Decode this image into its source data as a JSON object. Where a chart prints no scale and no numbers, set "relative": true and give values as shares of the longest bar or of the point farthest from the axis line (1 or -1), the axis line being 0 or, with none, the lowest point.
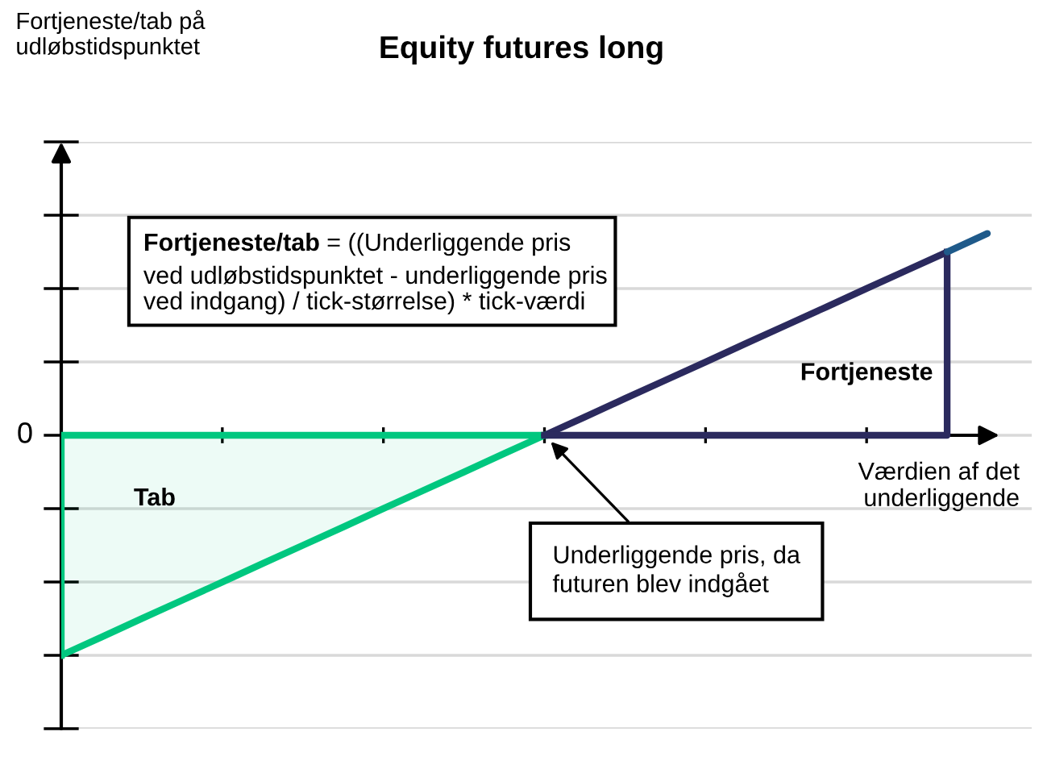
{
  "chart_data": {
    "type": "line",
    "relative": true,
    "title": "Equity futures long",
    "xlabel": "Værdien af det\nunderliggende",
    "grid": "y",
    "categories": [
      null,
      null,
      null,
      null,
      null,
      null,
      null,
      null,
      null,
      null,
      null,
      null,
      null,
      null,
      null,
      null,
      null,
      null,
      null,
      null,
      null,
      null,
      null,
      null
    ],
    "series": [
      {
        "type": "area",
        "color": "#00c77f",
        "values": [
          -1,
          -0.917,
          -0.833,
          -0.75,
          -0.667,
          -0.583,
          -0.5,
          -0.417,
          -0.333,
          -0.25,
          -0.167,
          -0.083,
          0,
          null,
          null,
          null,
          null,
          null,
          null,
          null,
          null,
          null,
          null,
          null
        ]
      },
      {
        "color": "#2b2a5e",
        "values": [
          null,
          null,
          null,
          null,
          null,
          null,
          null,
          null,
          null,
          null,
          null,
          null,
          0,
          0.083,
          0.167,
          0.25,
          0.333,
          0.417,
          0.5,
          0.583,
          0.667,
          0.75,
          0.833,
          null
        ]
      },
      {
        "color": "#1f5a8a",
        "values": [
          null,
          null,
          null,
          null,
          null,
          null,
          null,
          null,
          null,
          null,
          null,
          null,
          null,
          null,
          null,
          null,
          null,
          null,
          null,
          null,
          null,
          null,
          0.833,
          0.917
        ]
      }
    ],
    "annotations": [
      "0",
      "Tab",
      "Fortjeneste",
      "Fortjeneste/tab",
      "= ((Underliggende pris\nved udløbstidspunktet - underliggende pris\nved indgang) / tick-størrelse) * tick-værdi",
      "Underliggende pris, da\nfuturen blev indgået",
      "Fortjeneste/tab på\nudløbstidspunktet"
    ]
  }
}
